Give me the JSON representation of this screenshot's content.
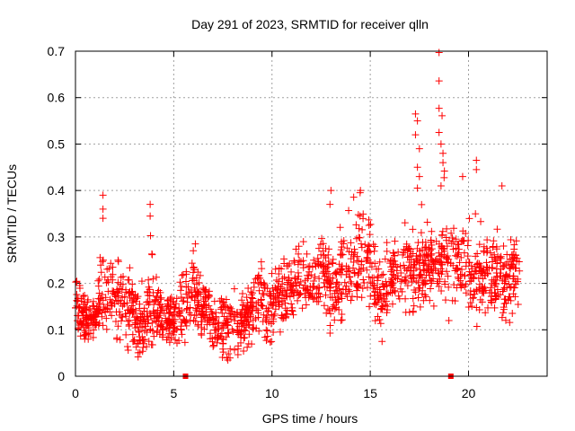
{
  "chart_data": {
    "type": "scatter",
    "title": "Day 291 of 2023, SRMTID for receiver qlln",
    "xlabel": "GPS time / hours",
    "ylabel": "SRMTID / TECUs",
    "xlim": [
      0,
      24
    ],
    "ylim": [
      0,
      0.7
    ],
    "xticks": [
      0,
      5,
      10,
      15,
      20
    ],
    "xtick_labels": [
      "0",
      "5",
      "10",
      "15",
      "20"
    ],
    "yticks": [
      0,
      0.1,
      0.2,
      0.3,
      0.4,
      0.5,
      0.6,
      0.7
    ],
    "ytick_labels": [
      "0",
      "0.1",
      "0.2",
      "0.3",
      "0.4",
      "0.5",
      "0.6",
      "0.7"
    ],
    "grid": true,
    "marker": "+",
    "color": "#ff0000",
    "zero_markers": [
      5.6,
      19.1
    ],
    "envelope": [
      {
        "x": 0.0,
        "lo": 0.1,
        "hi": 0.23
      },
      {
        "x": 0.5,
        "lo": 0.06,
        "hi": 0.18
      },
      {
        "x": 1.0,
        "lo": 0.07,
        "hi": 0.17
      },
      {
        "x": 1.4,
        "lo": 0.07,
        "hi": 0.39
      },
      {
        "x": 2.0,
        "lo": 0.08,
        "hi": 0.24
      },
      {
        "x": 2.5,
        "lo": 0.06,
        "hi": 0.27
      },
      {
        "x": 3.0,
        "lo": 0.04,
        "hi": 0.22
      },
      {
        "x": 3.5,
        "lo": 0.02,
        "hi": 0.2
      },
      {
        "x": 3.8,
        "lo": 0.05,
        "hi": 0.37
      },
      {
        "x": 4.5,
        "lo": 0.05,
        "hi": 0.2
      },
      {
        "x": 5.0,
        "lo": 0.06,
        "hi": 0.18
      },
      {
        "x": 6.0,
        "lo": 0.07,
        "hi": 0.28
      },
      {
        "x": 6.5,
        "lo": 0.08,
        "hi": 0.21
      },
      {
        "x": 7.0,
        "lo": 0.05,
        "hi": 0.2
      },
      {
        "x": 7.5,
        "lo": 0.04,
        "hi": 0.19
      },
      {
        "x": 8.0,
        "lo": 0.03,
        "hi": 0.19
      },
      {
        "x": 8.5,
        "lo": 0.05,
        "hi": 0.18
      },
      {
        "x": 9.0,
        "lo": 0.06,
        "hi": 0.24
      },
      {
        "x": 9.5,
        "lo": 0.08,
        "hi": 0.25
      },
      {
        "x": 10.0,
        "lo": 0.07,
        "hi": 0.24
      },
      {
        "x": 10.5,
        "lo": 0.1,
        "hi": 0.27
      },
      {
        "x": 11.0,
        "lo": 0.13,
        "hi": 0.26
      },
      {
        "x": 11.5,
        "lo": 0.11,
        "hi": 0.3
      },
      {
        "x": 12.0,
        "lo": 0.12,
        "hi": 0.28
      },
      {
        "x": 12.5,
        "lo": 0.14,
        "hi": 0.3
      },
      {
        "x": 13.0,
        "lo": 0.08,
        "hi": 0.4
      },
      {
        "x": 13.5,
        "lo": 0.12,
        "hi": 0.34
      },
      {
        "x": 14.0,
        "lo": 0.13,
        "hi": 0.38
      },
      {
        "x": 14.5,
        "lo": 0.15,
        "hi": 0.4
      },
      {
        "x": 15.0,
        "lo": 0.15,
        "hi": 0.33
      },
      {
        "x": 15.5,
        "lo": 0.07,
        "hi": 0.3
      },
      {
        "x": 16.0,
        "lo": 0.14,
        "hi": 0.3
      },
      {
        "x": 16.5,
        "lo": 0.13,
        "hi": 0.32
      },
      {
        "x": 17.0,
        "lo": 0.12,
        "hi": 0.35
      },
      {
        "x": 17.4,
        "lo": 0.12,
        "hi": 0.56
      },
      {
        "x": 18.0,
        "lo": 0.14,
        "hi": 0.38
      },
      {
        "x": 18.5,
        "lo": 0.15,
        "hi": 0.7
      },
      {
        "x": 19.0,
        "lo": 0.14,
        "hi": 0.34
      },
      {
        "x": 19.5,
        "lo": 0.16,
        "hi": 0.34
      },
      {
        "x": 20.0,
        "lo": 0.13,
        "hi": 0.36
      },
      {
        "x": 20.5,
        "lo": 0.1,
        "hi": 0.42
      },
      {
        "x": 21.0,
        "lo": 0.12,
        "hi": 0.46
      },
      {
        "x": 21.5,
        "lo": 0.12,
        "hi": 0.36
      },
      {
        "x": 22.0,
        "lo": 0.08,
        "hi": 0.41
      },
      {
        "x": 22.6,
        "lo": 0.14,
        "hi": 0.28
      }
    ],
    "outliers": [
      [
        1.4,
        0.39
      ],
      [
        1.4,
        0.36
      ],
      [
        1.4,
        0.34
      ],
      [
        3.8,
        0.37
      ],
      [
        3.8,
        0.345
      ],
      [
        6.1,
        0.285
      ],
      [
        17.3,
        0.565
      ],
      [
        17.4,
        0.55
      ],
      [
        17.3,
        0.52
      ],
      [
        17.5,
        0.49
      ],
      [
        17.4,
        0.45
      ],
      [
        17.5,
        0.43
      ],
      [
        17.4,
        0.405
      ],
      [
        18.5,
        0.697
      ],
      [
        18.5,
        0.636
      ],
      [
        18.5,
        0.577
      ],
      [
        18.5,
        0.525
      ],
      [
        18.6,
        0.5
      ],
      [
        18.7,
        0.48
      ],
      [
        18.7,
        0.46
      ],
      [
        18.6,
        0.41
      ],
      [
        20.4,
        0.465
      ],
      [
        20.4,
        0.445
      ],
      [
        19.7,
        0.43
      ],
      [
        21.7,
        0.41
      ],
      [
        14.5,
        0.4
      ],
      [
        13.0,
        0.4
      ],
      [
        15.6,
        0.075
      ],
      [
        19.0,
        0.12
      ]
    ],
    "n_points": 1800
  }
}
